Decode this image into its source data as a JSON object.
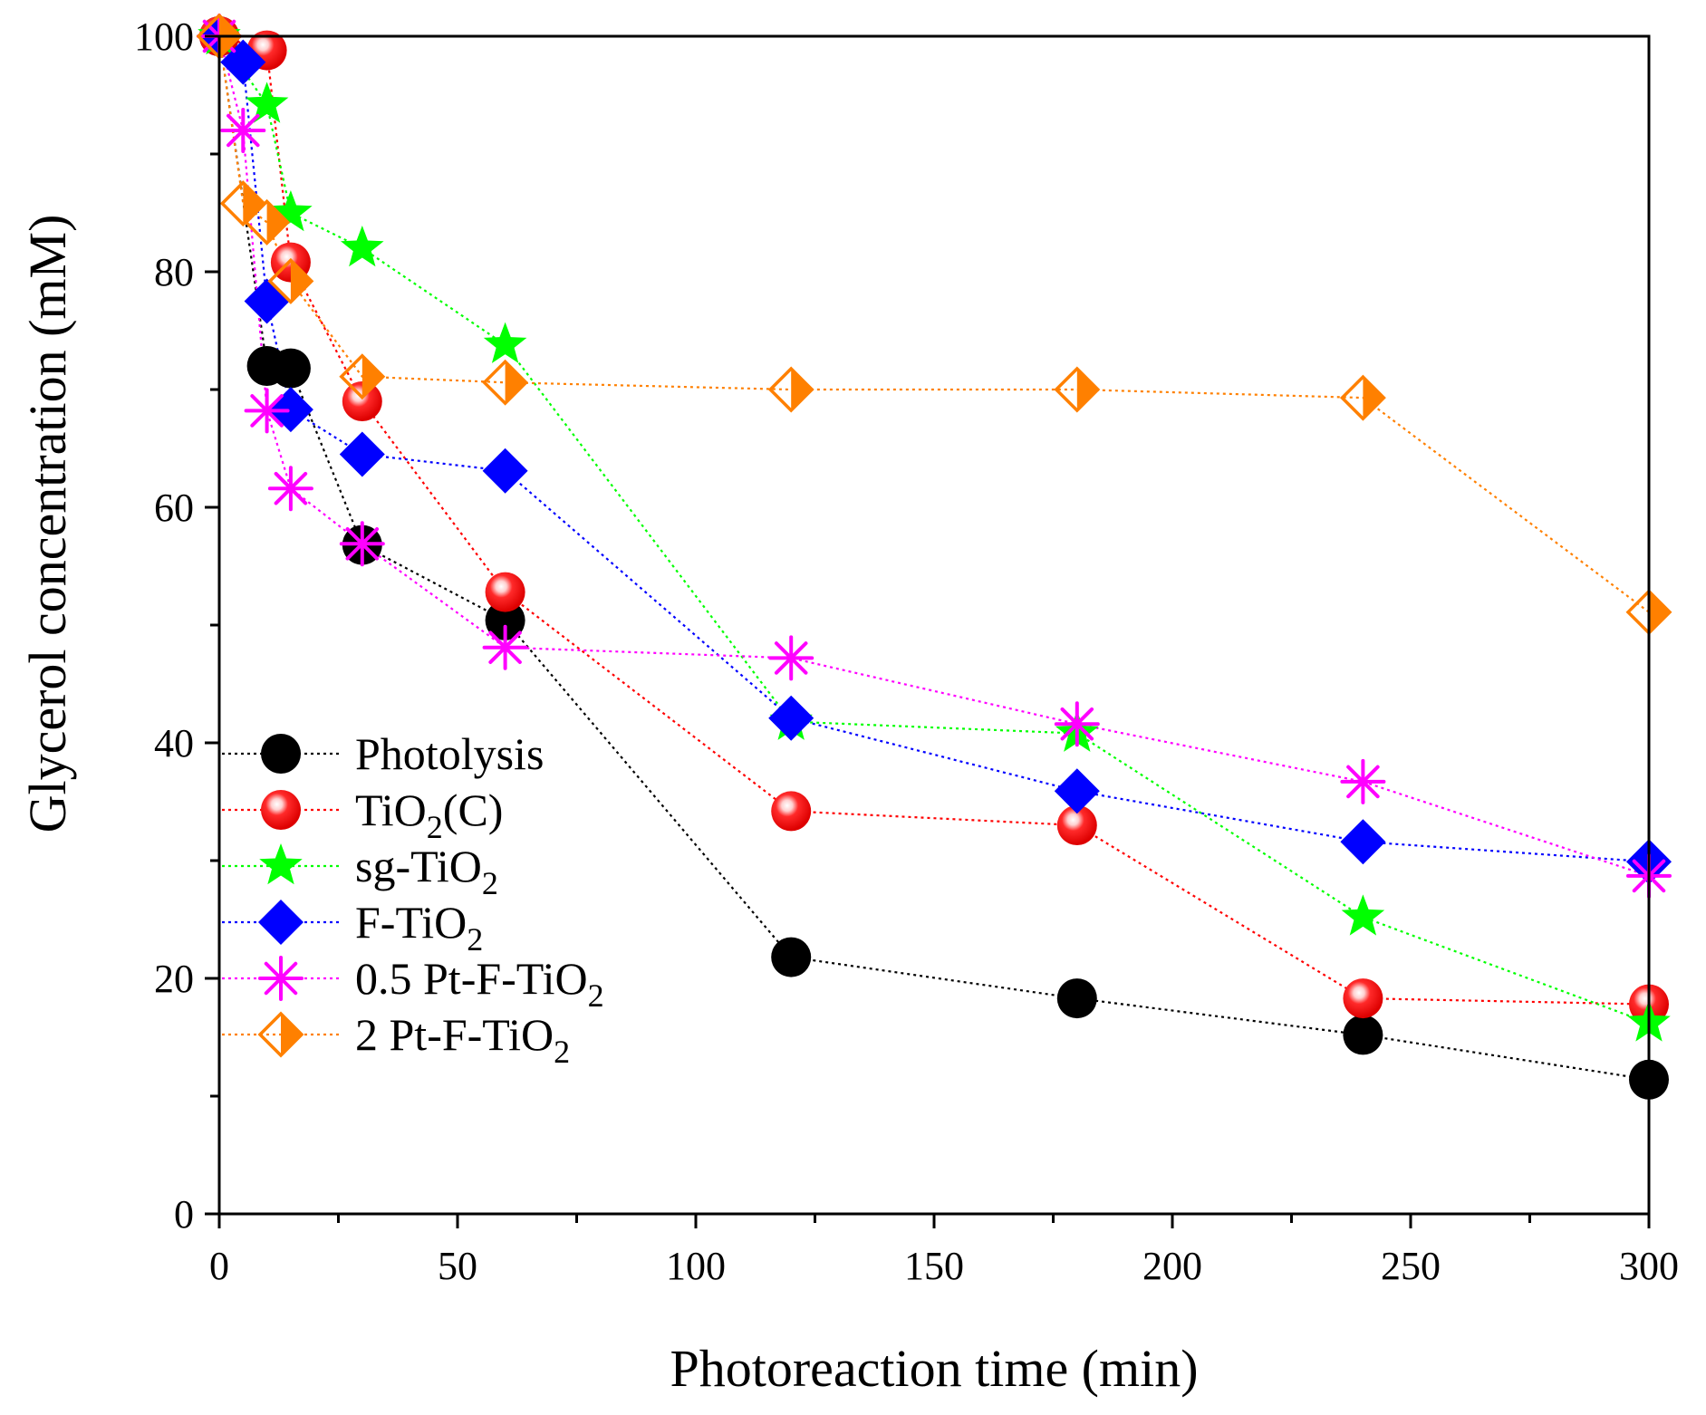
{
  "chart_data": {
    "type": "line",
    "title": "",
    "xlabel": "Photoreaction time (min)",
    "ylabel": "Glycerol concentration (mM)",
    "xlim": [
      0,
      300
    ],
    "ylim": [
      0,
      100
    ],
    "xticks": [
      0,
      50,
      100,
      150,
      200,
      250,
      300
    ],
    "yticks": [
      0,
      20,
      40,
      60,
      80,
      100
    ],
    "xtick_labels": [
      "0",
      "50",
      "100",
      "150",
      "200",
      "250",
      "300"
    ],
    "ytick_labels": [
      "0",
      "20",
      "40",
      "60",
      "80",
      "100"
    ],
    "grid": false,
    "legend_position": "bottom-left",
    "series": [
      {
        "name": "Photolysis",
        "legend_main": "Photolysis",
        "legend_sub": "",
        "legend_tail": "",
        "color": "#000000",
        "marker": "circle",
        "x": [
          0,
          10,
          15,
          30,
          60,
          120,
          180,
          240,
          300
        ],
        "y": [
          100,
          72.0,
          71.8,
          56.8,
          50.4,
          21.8,
          18.3,
          15.2,
          11.4
        ]
      },
      {
        "name": "TiO2(C)",
        "legend_main": "TiO",
        "legend_sub": "2",
        "legend_tail": "(C)",
        "color": "#ff0000",
        "marker": "sphere",
        "x": [
          0,
          10,
          15,
          30,
          60,
          120,
          180,
          240,
          300
        ],
        "y": [
          100,
          98.8,
          80.8,
          69.0,
          52.8,
          34.2,
          33.0,
          18.3,
          17.8
        ]
      },
      {
        "name": "sg-TiO2",
        "legend_main": "sg-TiO",
        "legend_sub": "2",
        "legend_tail": "",
        "color": "#00ff00",
        "marker": "star",
        "x": [
          0,
          10,
          15,
          30,
          60,
          120,
          180,
          240,
          300
        ],
        "y": [
          100,
          94.2,
          85.0,
          82.0,
          73.8,
          41.8,
          40.8,
          25.2,
          16.2
        ]
      },
      {
        "name": "F-TiO2",
        "legend_main": "F-TiO",
        "legend_sub": "2",
        "legend_tail": "",
        "color": "#0000ff",
        "marker": "diamond",
        "x": [
          0,
          5,
          10,
          15,
          30,
          60,
          120,
          180,
          240,
          300
        ],
        "y": [
          100,
          97.8,
          77.5,
          68.3,
          64.5,
          63.1,
          42.1,
          35.9,
          31.6,
          29.9
        ]
      },
      {
        "name": "0.5 Pt-F-TiO2",
        "legend_main": "0.5 Pt-F-TiO",
        "legend_sub": "2",
        "legend_tail": "",
        "color": "#ff00ff",
        "marker": "asterisk",
        "x": [
          0,
          5,
          10,
          15,
          30,
          60,
          120,
          180,
          240,
          300
        ],
        "y": [
          100,
          92.0,
          68.2,
          61.6,
          56.9,
          48.1,
          47.2,
          41.6,
          36.7,
          28.7
        ]
      },
      {
        "name": "2 Pt-F-TiO2",
        "legend_main": "2 Pt-F-TiO",
        "legend_sub": "2",
        "legend_tail": "",
        "color": "#ff8000",
        "marker": "half-diamond",
        "x": [
          0,
          5,
          10,
          15,
          30,
          60,
          120,
          180,
          240,
          300
        ],
        "y": [
          100,
          85.8,
          84.2,
          79.2,
          71.1,
          70.6,
          70.0,
          70.0,
          69.3,
          51.1
        ]
      }
    ]
  }
}
